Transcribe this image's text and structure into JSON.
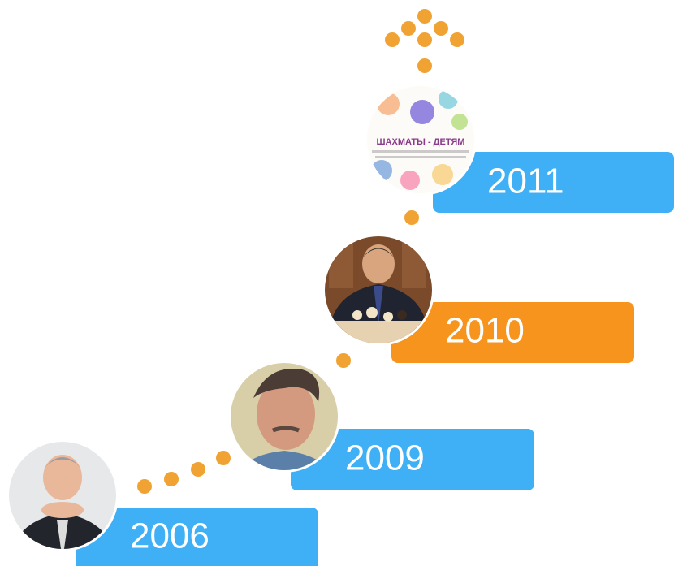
{
  "timeline": {
    "items": [
      {
        "year": "2006"
      },
      {
        "year": "2009"
      },
      {
        "year": "2010"
      },
      {
        "year": "2011",
        "book_title": "ШАХМАТЫ - ДЕТЯМ"
      }
    ]
  }
}
